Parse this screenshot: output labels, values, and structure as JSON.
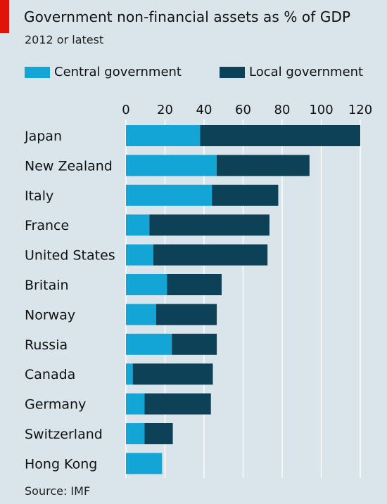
{
  "colors": {
    "background": "#d9e5ea",
    "accent_red": "#e3120b",
    "central": "#14a5d7",
    "local": "#0c4158",
    "grid": "#ffffff"
  },
  "source": "Source: IMF",
  "chart_data": {
    "type": "bar",
    "orientation": "horizontal",
    "stacked": true,
    "title": "Government non-financial assets as % of GDP",
    "subtitle": "2012 or latest",
    "xlim": [
      0,
      120
    ],
    "x_ticks": [
      0,
      20,
      40,
      60,
      80,
      100,
      120
    ],
    "grid": true,
    "legend_position": "top",
    "categories": [
      "Japan",
      "New Zealand",
      "Italy",
      "France",
      "United States",
      "Britain",
      "Norway",
      "Russia",
      "Canada",
      "Germany",
      "Switzerland",
      "Hong Kong"
    ],
    "series": [
      {
        "name": "Central government",
        "values": [
          38,
          46.5,
          44,
          12,
          14,
          21,
          15.5,
          23.5,
          3.5,
          9.5,
          9.5,
          18.5
        ]
      },
      {
        "name": "Local government",
        "values": [
          82,
          47.5,
          34,
          61.5,
          58.5,
          28,
          31,
          23,
          41,
          34,
          14.5,
          0
        ]
      }
    ]
  }
}
